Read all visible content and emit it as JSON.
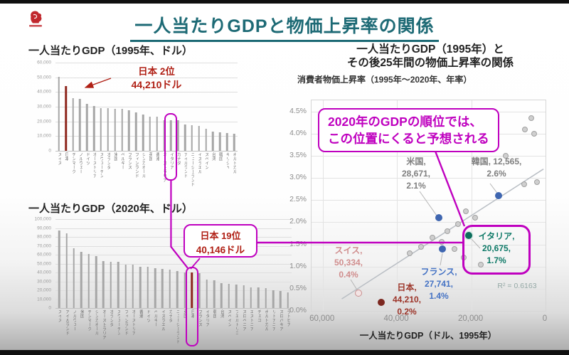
{
  "slide": {
    "title": "一人当たりGDPと物価上昇率の関係"
  },
  "chart_1995": {
    "title": "一人当たりGDP（1995年、ドル）",
    "annotation_line1": "日本 2位",
    "annotation_line2": "44,210ドル"
  },
  "chart_2020": {
    "title": "一人当たりGDP（2020年、ドル）",
    "annotation_line1": "日本 19位",
    "annotation_line2": "40,146ドル"
  },
  "scatter": {
    "title_line1": "一人当たりGDP（1995年）と",
    "title_line2": "その後25年間の物価上昇率の関係",
    "subtitle": "消費者物価上昇率（1995年～2020年、年率）",
    "xlabel": "一人当たりGDP（ドル、1995年）",
    "r_squared": "R² = 0.6163",
    "callout_line1": "2020年のGDPの順位では、",
    "callout_line2": "この位置にくると予想される"
  },
  "colors": {
    "accent_magenta": "#bf00bf",
    "japan_red_text": "#b02015",
    "japan_red_bar": "#8e261d",
    "title_teal": "#1d6a75",
    "bar_gray": "#a6a6a6",
    "point_blue": "#3f66b0",
    "point_rose": "#c98f8f",
    "point_darkred": "#7c2820",
    "point_teal": "#0c6e5c",
    "label_gray": "#7f7f7f"
  },
  "chart_data": [
    {
      "type": "bar",
      "title": "一人当たりGDP（1995年、ドル）",
      "ylim": [
        0,
        60000
      ],
      "ytick_labels": [
        "60,000",
        "50,000",
        "40,000",
        "30,000",
        "20,000",
        "10,000",
        "0"
      ],
      "categories": [
        "スイス",
        "日本",
        "デンマーク",
        "ノルウェー",
        "ドイツ",
        "オーストリア",
        "スウェーデン",
        "オランダ",
        "米国",
        "ベルギー",
        "フランス",
        "フィンランド",
        "シンガポール",
        "英国",
        "香港",
        "オーストラリア",
        "イタリア",
        "カナダ",
        "アイルランド",
        "ニュージーランド",
        "イスラエル",
        "スペイン",
        "台湾",
        "韓国",
        "ギリシャ",
        "ポルトガル"
      ],
      "values": [
        50334,
        44210,
        35800,
        35100,
        32000,
        30300,
        29000,
        28800,
        28671,
        28400,
        27741,
        26300,
        24900,
        23200,
        23000,
        20900,
        20675,
        20600,
        18100,
        17400,
        17000,
        15200,
        13100,
        12565,
        12200,
        11800
      ],
      "japan": {
        "index": 1
      },
      "highlight": {
        "index": 16,
        "pad_top": 10,
        "pad_bottom": 38,
        "anchor": "italy1995"
      }
    },
    {
      "type": "bar",
      "title": "一人当たりGDP（2020年、ドル）",
      "ylim": [
        0,
        100000
      ],
      "ytick_labels": [
        "100,000",
        "90,000",
        "80,000",
        "70,000",
        "60,000",
        "50,000",
        "40,000",
        "30,000",
        "20,000",
        "10,000",
        "0"
      ],
      "categories": [
        "スイス",
        "アイルランド",
        "ノルウェー",
        "米国",
        "デンマーク",
        "シンガポール",
        "オーストラリア",
        "オランダ",
        "スウェーデン",
        "フィンランド",
        "オーストリア",
        "香港",
        "ドイツ",
        "ベルギー",
        "イスラエル",
        "カナダ",
        "ニュージーランド",
        "英国",
        "日本",
        "フランス",
        "イタリア",
        "韓国",
        "台湾",
        "スペイン",
        "プエルトリコ",
        "スロベニア",
        "エストニア",
        "チェコ",
        "ポルトガル",
        "リトアニア",
        "スロバキア",
        "ラトビア"
      ],
      "values": [
        86919,
        84000,
        67300,
        63416,
        60900,
        58100,
        52900,
        52200,
        52100,
        49200,
        48600,
        46700,
        46200,
        45200,
        44200,
        43300,
        41600,
        40300,
        40146,
        39000,
        31700,
        31600,
        28400,
        27000,
        26400,
        25500,
        23400,
        22900,
        22200,
        20200,
        19300,
        17600
      ],
      "japan": {
        "index": 18
      },
      "highlight": {
        "index": 18,
        "pad_top": 8,
        "pad_bottom": 50,
        "anchor": "japan2020"
      }
    },
    {
      "type": "scatter",
      "x_reversed": true,
      "xlim": [
        0,
        63000
      ],
      "ylim": [
        0,
        4.75
      ],
      "yticks": [
        {
          "v": 4.5,
          "label": "4.5%"
        },
        {
          "v": 4.0,
          "label": "4.0%"
        },
        {
          "v": 3.5,
          "label": "3.5%"
        },
        {
          "v": 3.0,
          "label": "3.0%"
        },
        {
          "v": 2.5,
          "label": "2.5%"
        },
        {
          "v": 2.0,
          "label": "2.0%"
        },
        {
          "v": 1.5,
          "label": "1.5%"
        },
        {
          "v": 1.0,
          "label": "1.0%"
        },
        {
          "v": 0.5,
          "label": "0.5%"
        },
        {
          "v": 0.0,
          "label": "0.0%"
        }
      ],
      "xticks": [
        {
          "v": 60000,
          "label": "60,000"
        },
        {
          "v": 40000,
          "label": "40,000"
        },
        {
          "v": 20000,
          "label": "20,000"
        },
        {
          "v": 0,
          "label": "0"
        }
      ],
      "r2": 0.6163,
      "trend": {
        "x1": 54860,
        "y1": 0.27,
        "x2": 550,
        "y2": 3.2
      },
      "points_unlabeled": [
        [
          3900,
          4.35
        ],
        [
          5600,
          4.1
        ],
        [
          3000,
          4.0
        ],
        [
          10800,
          3.5
        ],
        [
          2300,
          2.9
        ],
        [
          5800,
          2.85
        ],
        [
          21500,
          2.25
        ],
        [
          19000,
          2.1
        ],
        [
          23500,
          1.95
        ],
        [
          26500,
          1.8
        ],
        [
          30500,
          1.65
        ],
        [
          28000,
          1.55
        ],
        [
          33500,
          1.45
        ],
        [
          24500,
          1.4
        ],
        [
          36500,
          1.3
        ],
        [
          22000,
          1.2
        ],
        [
          17500,
          1.05
        ]
      ],
      "points_labeled": [
        {
          "name": "米国",
          "x": 28671,
          "y": 2.1,
          "color": "blue",
          "lines": [
            "米国,",
            "28,671,",
            "2.1%"
          ]
        },
        {
          "name": "韓国",
          "x": 12565,
          "y": 2.6,
          "color": "blue",
          "lines": [
            "韓国, 12,565,",
            "2.6%"
          ]
        },
        {
          "name": "スイス",
          "x": 50334,
          "y": 0.4,
          "color": "rose",
          "lines": [
            "スイス,",
            "50,334,",
            "0.4%"
          ]
        },
        {
          "name": "フランス",
          "x": 27741,
          "y": 1.4,
          "color": "blue",
          "lines": [
            "フランス,",
            "27,741,",
            "1.4%"
          ]
        },
        {
          "name": "日本",
          "x": 44210,
          "y": 0.2,
          "color": "darkred",
          "lines": [
            "日本,",
            "44,210,",
            "0.2%"
          ]
        },
        {
          "name": "イタリア",
          "x": 20675,
          "y": 1.7,
          "color": "teal",
          "lines": [
            "イタリア,",
            "20,675,",
            "1.7%"
          ]
        }
      ]
    }
  ]
}
